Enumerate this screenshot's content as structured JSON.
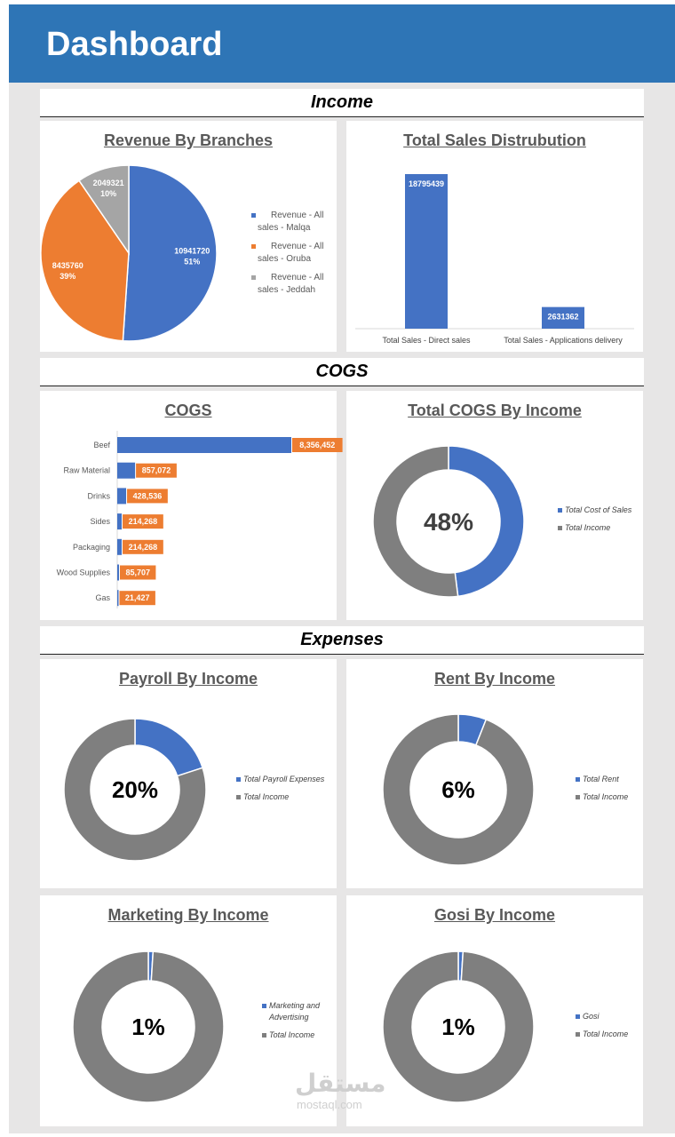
{
  "header": {
    "title": "Dashboard"
  },
  "sections": {
    "income": "Income",
    "cogs": "COGS",
    "expenses": "Expenses"
  },
  "colors": {
    "blue": "#4472c4",
    "orange": "#ed7d31",
    "gray": "#a5a5a5",
    "dark_gray": "#7f7f7f",
    "header": "#2e75b6"
  },
  "chart_data": [
    {
      "id": "revenue_by_branches",
      "type": "pie",
      "title": "Revenue By Branches",
      "categories": [
        "Revenue - All sales - Malqa",
        "Revenue - All sales - Oruba",
        "Revenue - All sales - Jeddah"
      ],
      "values": [
        10941720,
        8435760,
        2049321
      ],
      "labels": [
        "10941720",
        "8435760",
        "2049321"
      ],
      "percents": [
        "51%",
        "39%",
        "10%"
      ],
      "legend_lines": [
        [
          "Revenue - All",
          "sales - Malqa"
        ],
        [
          "Revenue - All",
          "sales - Oruba"
        ],
        [
          "Revenue - All",
          "sales - Jeddah"
        ]
      ],
      "legend": "right"
    },
    {
      "id": "total_sales_distribution",
      "type": "bar",
      "title": "Total Sales Distrubution",
      "categories": [
        "Total Sales - Direct sales",
        "Total Sales - Applications delivery"
      ],
      "values": [
        18795439,
        2631362
      ],
      "labels": [
        "18795439",
        "2631362"
      ]
    },
    {
      "id": "cogs",
      "type": "bar",
      "orientation": "horizontal",
      "title": "COGS",
      "categories": [
        "Beef",
        "Raw Material",
        "Drinks",
        "Sides",
        "Packaging",
        "Wood Supplies",
        "Gas"
      ],
      "values": [
        8356452,
        857072,
        428536,
        214268,
        214268,
        85707,
        21427
      ],
      "labels": [
        "8,356,452",
        "857,072",
        "428,536",
        "214,268",
        "214,268",
        "85,707",
        "21,427"
      ]
    },
    {
      "id": "total_cogs_by_income",
      "type": "pie",
      "style": "donut",
      "title": "Total COGS By Income",
      "categories": [
        "Total Cost of Sales",
        "Total Income"
      ],
      "values": [
        48,
        52
      ],
      "center_label": "48%",
      "legend": "right"
    },
    {
      "id": "payroll_by_income",
      "type": "pie",
      "style": "donut",
      "title": "Payroll By Income",
      "categories": [
        "Total Payroll Expenses",
        "Total Income"
      ],
      "values": [
        20,
        80
      ],
      "center_label": "20%",
      "legend": "right"
    },
    {
      "id": "rent_by_income",
      "type": "pie",
      "style": "donut",
      "title": "Rent By Income",
      "categories": [
        "Total Rent",
        "Total Income"
      ],
      "values": [
        6,
        94
      ],
      "center_label": "6%",
      "legend": "right"
    },
    {
      "id": "marketing_by_income",
      "type": "pie",
      "style": "donut",
      "title": "Marketing By Income",
      "categories": [
        "Marketing and Advertising",
        "Total Income"
      ],
      "legend_lines": [
        [
          "Marketing and",
          "Advertising"
        ],
        [
          "Total Income"
        ]
      ],
      "values": [
        1,
        99
      ],
      "center_label": "1%",
      "legend": "right"
    },
    {
      "id": "gosi_by_income",
      "type": "pie",
      "style": "donut",
      "title": "Gosi By Income",
      "categories": [
        "Gosi",
        "Total Income"
      ],
      "values": [
        1,
        99
      ],
      "center_label": "1%",
      "legend": "right"
    }
  ],
  "watermark": {
    "text": "مستقل",
    "sub": "mostaql.com"
  }
}
